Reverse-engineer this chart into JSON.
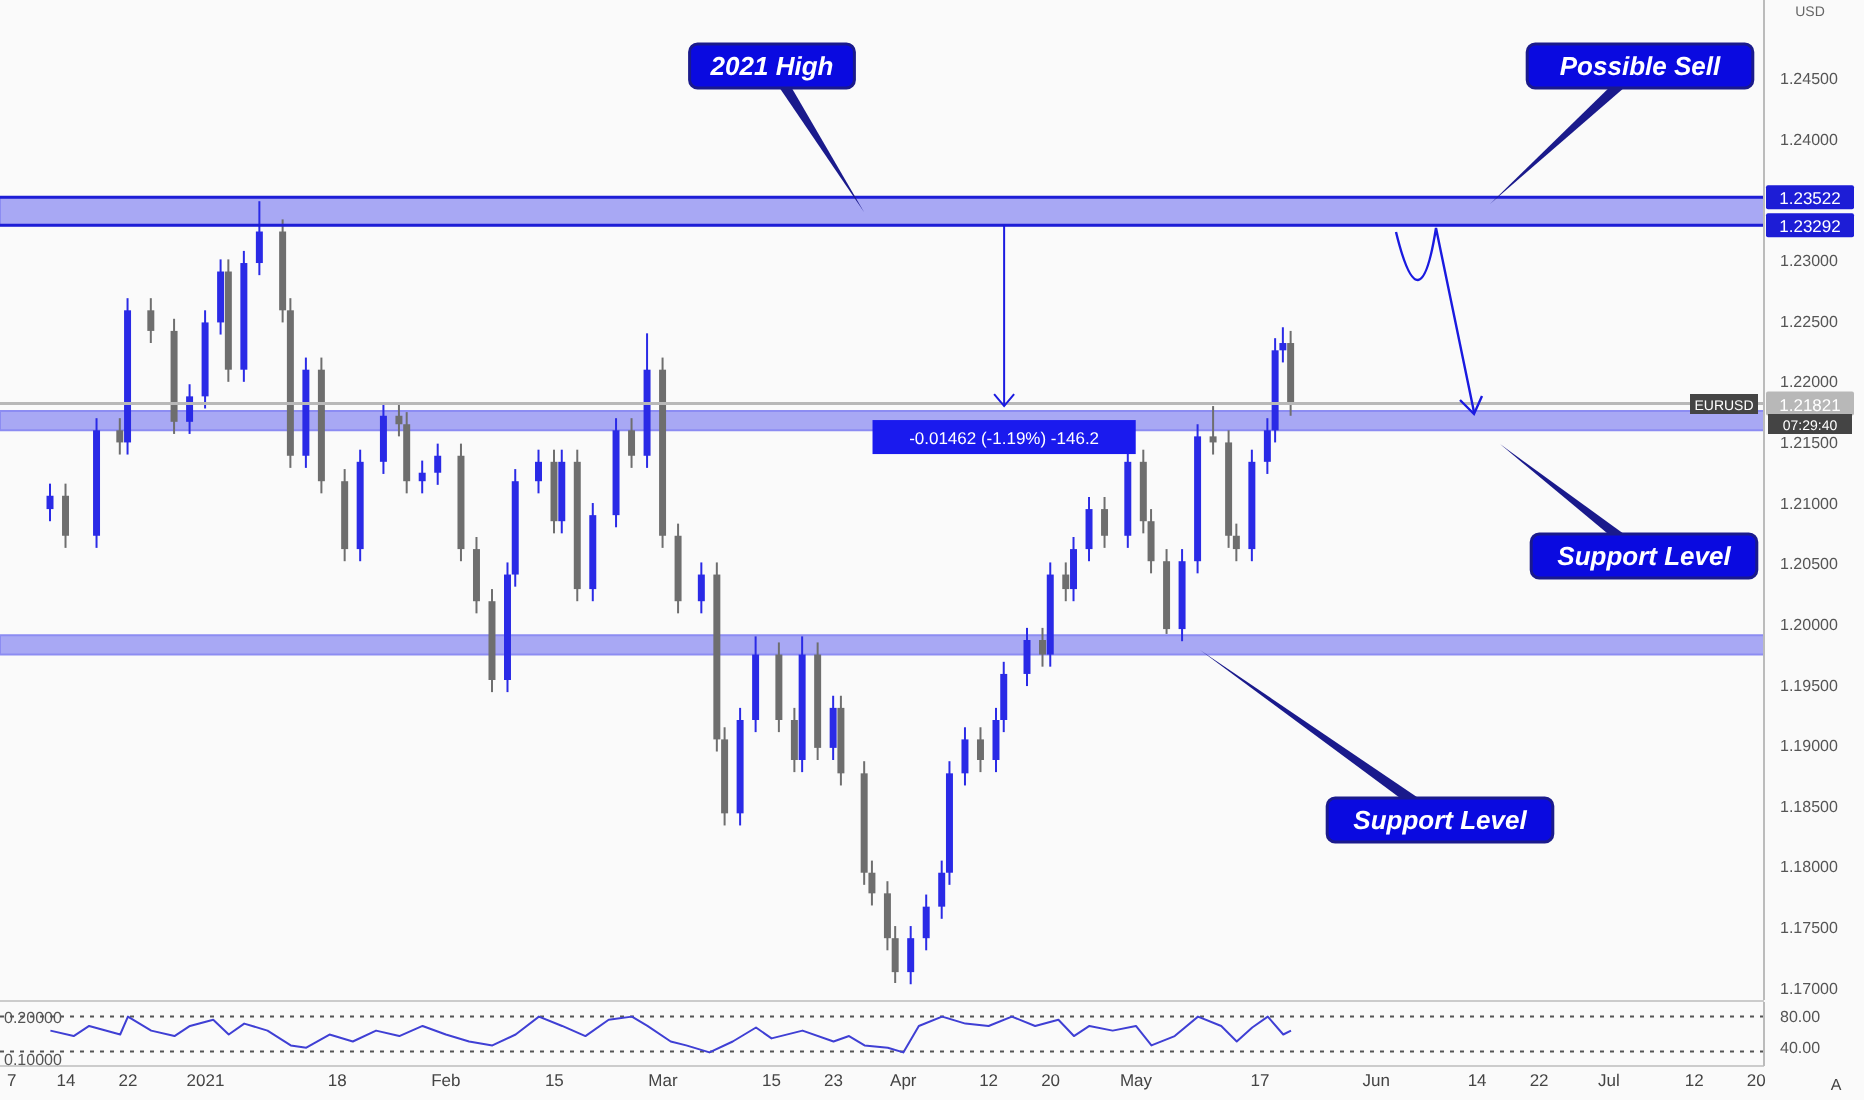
{
  "chart_data": [
    {
      "type": "candlestick",
      "x": [
        "2020-12-12",
        "2020-12-14",
        "2020-12-18",
        "2020-12-21",
        "2020-12-22",
        "2020-12-25",
        "2020-12-28",
        "2020-12-30",
        "2021-01-01",
        "2021-01-03",
        "2021-01-04",
        "2021-01-06",
        "2021-01-08",
        "2021-01-11",
        "2021-01-12",
        "2021-01-14",
        "2021-01-16",
        "2021-01-19",
        "2021-01-21",
        "2021-01-24",
        "2021-01-26",
        "2021-01-27",
        "2021-01-29",
        "2021-01-31",
        "2021-02-03",
        "2021-02-05",
        "2021-02-07",
        "2021-02-09",
        "2021-02-10",
        "2021-02-13",
        "2021-02-15",
        "2021-02-16",
        "2021-02-18",
        "2021-02-20",
        "2021-02-23",
        "2021-02-25",
        "2021-02-27",
        "2021-03-01",
        "2021-03-03",
        "2021-03-06",
        "2021-03-08",
        "2021-03-09",
        "2021-03-11",
        "2021-03-13",
        "2021-03-16",
        "2021-03-18",
        "2021-03-19",
        "2021-03-21",
        "2021-03-23",
        "2021-03-24",
        "2021-03-27",
        "2021-03-28",
        "2021-03-30",
        "2021-03-31",
        "2021-04-02",
        "2021-04-04",
        "2021-04-06",
        "2021-04-07",
        "2021-04-09",
        "2021-04-11",
        "2021-04-13",
        "2021-04-14",
        "2021-04-17",
        "2021-04-19",
        "2021-04-20",
        "2021-04-22",
        "2021-04-23",
        "2021-04-25",
        "2021-04-27",
        "2021-04-30",
        "2021-05-02",
        "2021-05-03",
        "2021-05-05",
        "2021-05-07",
        "2021-05-09",
        "2021-05-11",
        "2021-05-13",
        "2021-05-14",
        "2021-05-16",
        "2021-05-18",
        "2021-05-19",
        "2021-05-20",
        "2021-05-21"
      ],
      "ohlc": [
        [
          1.2095,
          1.2116,
          1.2085,
          1.2106
        ],
        [
          1.2106,
          1.2116,
          1.2063,
          1.2073
        ],
        [
          1.2073,
          1.217,
          1.2063,
          1.216
        ],
        [
          1.216,
          1.217,
          1.214,
          1.215
        ],
        [
          1.215,
          1.2269,
          1.214,
          1.2259
        ],
        [
          1.2259,
          1.2269,
          1.2232,
          1.2242
        ],
        [
          1.2242,
          1.2252,
          1.2157,
          1.2167
        ],
        [
          1.2167,
          1.2198,
          1.2157,
          1.2188
        ],
        [
          1.2188,
          1.2259,
          1.2178,
          1.2249
        ],
        [
          1.2249,
          1.2301,
          1.2239,
          1.2291
        ],
        [
          1.2291,
          1.2301,
          1.22,
          1.221
        ],
        [
          1.221,
          1.2308,
          1.22,
          1.2298
        ],
        [
          1.2298,
          1.2349,
          1.2288,
          1.2324
        ],
        [
          1.2324,
          1.2334,
          1.2249,
          1.2259
        ],
        [
          1.2259,
          1.2269,
          1.2129,
          1.2139
        ],
        [
          1.2139,
          1.222,
          1.2129,
          1.221
        ],
        [
          1.221,
          1.222,
          1.2108,
          1.2118
        ],
        [
          1.2118,
          1.2128,
          1.2052,
          1.2062
        ],
        [
          1.2062,
          1.2144,
          1.2052,
          1.2134
        ],
        [
          1.2134,
          1.2182,
          1.2124,
          1.2172
        ],
        [
          1.2172,
          1.2182,
          1.2155,
          1.2165
        ],
        [
          1.2165,
          1.2175,
          1.2108,
          1.2118
        ],
        [
          1.2118,
          1.2135,
          1.2108,
          1.2125
        ],
        [
          1.2125,
          1.2149,
          1.2115,
          1.2139
        ],
        [
          1.2139,
          1.2149,
          1.2052,
          1.2062
        ],
        [
          1.2062,
          1.2072,
          1.2009,
          1.2019
        ],
        [
          1.2019,
          1.2029,
          1.1944,
          1.1954
        ],
        [
          1.1954,
          1.2051,
          1.1944,
          1.2041
        ],
        [
          1.2041,
          1.2128,
          1.2031,
          1.2118
        ],
        [
          1.2118,
          1.2144,
          1.2108,
          1.2134
        ],
        [
          1.2134,
          1.2144,
          1.2075,
          1.2085
        ],
        [
          1.2085,
          1.2144,
          1.2075,
          1.2134
        ],
        [
          1.2134,
          1.2144,
          1.2019,
          1.2029
        ],
        [
          1.2029,
          1.21,
          1.2019,
          1.209
        ],
        [
          1.209,
          1.217,
          1.208,
          1.216
        ],
        [
          1.216,
          1.217,
          1.2129,
          1.2139
        ],
        [
          1.2139,
          1.224,
          1.2129,
          1.221
        ],
        [
          1.221,
          1.222,
          1.2063,
          1.2073
        ],
        [
          1.2073,
          1.2083,
          1.2009,
          1.2019
        ],
        [
          1.2019,
          1.2051,
          1.2009,
          1.2041
        ],
        [
          1.2041,
          1.2051,
          1.1895,
          1.1905
        ],
        [
          1.1905,
          1.1915,
          1.1834,
          1.1844
        ],
        [
          1.1844,
          1.1931,
          1.1834,
          1.1921
        ],
        [
          1.1921,
          1.199,
          1.1911,
          1.1975
        ],
        [
          1.1975,
          1.1985,
          1.1911,
          1.1921
        ],
        [
          1.1921,
          1.1931,
          1.1878,
          1.1888
        ],
        [
          1.1888,
          1.199,
          1.1878,
          1.1975
        ],
        [
          1.1975,
          1.1985,
          1.1888,
          1.1898
        ],
        [
          1.1898,
          1.1941,
          1.1888,
          1.1931
        ],
        [
          1.1931,
          1.1941,
          1.1867,
          1.1877
        ],
        [
          1.1877,
          1.1887,
          1.1785,
          1.1795
        ],
        [
          1.1795,
          1.1805,
          1.1768,
          1.1778
        ],
        [
          1.1778,
          1.1788,
          1.1731,
          1.1741
        ],
        [
          1.1741,
          1.1751,
          1.1704,
          1.1713
        ],
        [
          1.1713,
          1.1751,
          1.1703,
          1.1741
        ],
        [
          1.1741,
          1.1777,
          1.1731,
          1.1767
        ],
        [
          1.1767,
          1.1805,
          1.1757,
          1.1795
        ],
        [
          1.1795,
          1.1887,
          1.1785,
          1.1877
        ],
        [
          1.1877,
          1.1915,
          1.1867,
          1.1905
        ],
        [
          1.1905,
          1.1915,
          1.1878,
          1.1888
        ],
        [
          1.1888,
          1.1931,
          1.1878,
          1.1921
        ],
        [
          1.1921,
          1.1969,
          1.1911,
          1.1959
        ],
        [
          1.1959,
          1.1997,
          1.1949,
          1.1987
        ],
        [
          1.1987,
          1.1997,
          1.1965,
          1.1975
        ],
        [
          1.1975,
          1.2051,
          1.1965,
          1.2041
        ],
        [
          1.2041,
          1.2051,
          1.2019,
          1.2029
        ],
        [
          1.2029,
          1.2072,
          1.2019,
          1.2062
        ],
        [
          1.2062,
          1.2105,
          1.2052,
          1.2095
        ],
        [
          1.2095,
          1.2105,
          1.2063,
          1.2073
        ],
        [
          1.2073,
          1.2144,
          1.2063,
          1.2134
        ],
        [
          1.2134,
          1.2144,
          1.2075,
          1.2085
        ],
        [
          1.2085,
          1.2095,
          1.2042,
          1.2052
        ],
        [
          1.2052,
          1.2062,
          1.1992,
          1.1996
        ],
        [
          1.1996,
          1.2062,
          1.1986,
          1.2052
        ],
        [
          1.2052,
          1.2165,
          1.2042,
          1.2155
        ],
        [
          1.2155,
          1.218,
          1.214,
          1.215
        ],
        [
          1.215,
          1.216,
          1.2063,
          1.2073
        ],
        [
          1.2073,
          1.2083,
          1.2052,
          1.2062
        ],
        [
          1.2062,
          1.2144,
          1.2052,
          1.2134
        ],
        [
          1.2134,
          1.217,
          1.2124,
          1.216
        ],
        [
          1.216,
          1.2236,
          1.215,
          1.2226
        ],
        [
          1.2226,
          1.2245,
          1.2216,
          1.2232
        ],
        [
          1.2232,
          1.2242,
          1.2172,
          1.2182
        ]
      ],
      "xlim": [
        "2020-12-05T12:00",
        "2021-07-21"
      ],
      "ylim": [
        1.169,
        1.2515
      ],
      "yticks": [
        {
          "value": 1.17,
          "label": "1.17000"
        },
        {
          "value": 1.175,
          "label": "1.17500"
        },
        {
          "value": 1.18,
          "label": "1.18000"
        },
        {
          "value": 1.185,
          "label": "1.18500"
        },
        {
          "value": 1.19,
          "label": "1.19000"
        },
        {
          "value": 1.195,
          "label": "1.19500"
        },
        {
          "value": 1.2,
          "label": "1.20000"
        },
        {
          "value": 1.205,
          "label": "1.20500"
        },
        {
          "value": 1.21,
          "label": "1.21000"
        },
        {
          "value": 1.215,
          "label": "1.21500"
        },
        {
          "value": 1.22,
          "label": "1.22000"
        },
        {
          "value": 1.225,
          "label": "1.22500"
        },
        {
          "value": 1.23,
          "label": "1.23000"
        },
        {
          "value": 1.24,
          "label": "1.24000"
        },
        {
          "value": 1.245,
          "label": "1.24500"
        }
      ],
      "tick_labels": "y",
      "ref_lines": [
        {
          "axis": "y",
          "value": 1.23522,
          "label": "1.23522",
          "color": "#1d1dd6"
        },
        {
          "axis": "y",
          "value": 1.23292,
          "label": "1.23292",
          "color": "#1d1dd6"
        },
        {
          "axis": "y",
          "value": 1.21821,
          "label": "1.21821",
          "color": "#b8b8b8"
        }
      ],
      "bands": [
        {
          "axis": "y",
          "from": 1.23292,
          "to": 1.23522,
          "color": "#8c8cf2"
        },
        {
          "axis": "y",
          "from": 1.216,
          "to": 1.2176,
          "color": "#8c8cf2"
        },
        {
          "axis": "y",
          "from": 1.1975,
          "to": 1.1991,
          "color": "#8c8cf2"
        }
      ],
      "annotations": [
        "2021 High",
        "Possible Sell",
        "Support Level",
        "Support Level",
        {
          "text": "-0.01462 (-1.19%) -146.2",
          "x": "2021-04-14",
          "y": 1.218
        },
        "USD",
        "EURUSD",
        "07:29:40",
        "A"
      ]
    },
    {
      "type": "line",
      "x": [
        "2020-12-12",
        "2020-12-15",
        "2020-12-17",
        "2020-12-21",
        "2020-12-22",
        "2020-12-25",
        "2020-12-28",
        "2020-12-30",
        "2021-01-02",
        "2021-01-04",
        "2021-01-06",
        "2021-01-09",
        "2021-01-12",
        "2021-01-14",
        "2021-01-17",
        "2021-01-20",
        "2021-01-23",
        "2021-01-26",
        "2021-01-29",
        "2021-02-01",
        "2021-02-04",
        "2021-02-07",
        "2021-02-10",
        "2021-02-13",
        "2021-02-16",
        "2021-02-19",
        "2021-02-22",
        "2021-02-25",
        "2021-02-27",
        "2021-03-02",
        "2021-03-04",
        "2021-03-07",
        "2021-03-10",
        "2021-03-13",
        "2021-03-15",
        "2021-03-19",
        "2021-03-23",
        "2021-03-25",
        "2021-03-27",
        "2021-03-30",
        "2021-04-01",
        "2021-04-03",
        "2021-04-06",
        "2021-04-09",
        "2021-04-12",
        "2021-04-15",
        "2021-04-18",
        "2021-04-21",
        "2021-04-23",
        "2021-04-25",
        "2021-04-28",
        "2021-05-01",
        "2021-05-03",
        "2021-05-06",
        "2021-05-09",
        "2021-05-12",
        "2021-05-14",
        "2021-05-16",
        "2021-05-18",
        "2021-05-20",
        "2021-05-21"
      ],
      "values": [
        62,
        55,
        68,
        57,
        80,
        62,
        55,
        68,
        76,
        57,
        71,
        62,
        43,
        40,
        57,
        48,
        62,
        55,
        68,
        57,
        48,
        43,
        57,
        80,
        68,
        55,
        76,
        80,
        68,
        48,
        43,
        34,
        48,
        66,
        52,
        62,
        48,
        55,
        43,
        40,
        34,
        68,
        80,
        71,
        68,
        80,
        68,
        76,
        55,
        68,
        62,
        68,
        43,
        55,
        80,
        68,
        48,
        66,
        80,
        57,
        62
      ],
      "color": "#3f3fd4",
      "marker": "none",
      "xlim": [
        "2020-12-05T12:00",
        "2021-07-21"
      ],
      "xticks": [
        {
          "value": "2020-12-07",
          "label": "7"
        },
        {
          "value": "2020-12-14",
          "label": "14"
        },
        {
          "value": "2020-12-22",
          "label": "22"
        },
        {
          "value": "2021-01-01",
          "label": "2021"
        },
        {
          "value": "2021-01-18",
          "label": "18"
        },
        {
          "value": "2021-02-01",
          "label": "Feb"
        },
        {
          "value": "2021-02-15",
          "label": "15"
        },
        {
          "value": "2021-03-01",
          "label": "Mar"
        },
        {
          "value": "2021-03-15",
          "label": "15"
        },
        {
          "value": "2021-03-23",
          "label": "23"
        },
        {
          "value": "2021-04-01",
          "label": "Apr"
        },
        {
          "value": "2021-04-12",
          "label": "12"
        },
        {
          "value": "2021-04-20",
          "label": "20"
        },
        {
          "value": "2021-05-01",
          "label": "May"
        },
        {
          "value": "2021-05-17",
          "label": "17"
        },
        {
          "value": "2021-06-01",
          "label": "Jun"
        },
        {
          "value": "2021-06-14",
          "label": "14"
        },
        {
          "value": "2021-06-22",
          "label": "22"
        },
        {
          "value": "2021-07-01",
          "label": "Jul"
        },
        {
          "value": "2021-07-12",
          "label": "12"
        },
        {
          "value": "2021-07-20",
          "label": "20"
        }
      ],
      "ylim": [
        16.5,
        98.8
      ],
      "yticks": [
        {
          "value": 80,
          "label": "80.00"
        },
        {
          "value": 40,
          "label": "40.00"
        }
      ],
      "y2lim": [
        0.083,
        0.235
      ],
      "y2ticks": [
        {
          "value": 0.2,
          "label": "0.20000"
        },
        {
          "value": 0.1,
          "label": "0.10000"
        }
      ],
      "ref_lines": [
        {
          "axis": "y",
          "value": 80,
          "line_style": "dotted",
          "color": "#555555"
        },
        {
          "axis": "y",
          "value": 35,
          "line_style": "dotted",
          "color": "#555555"
        }
      ]
    }
  ]
}
